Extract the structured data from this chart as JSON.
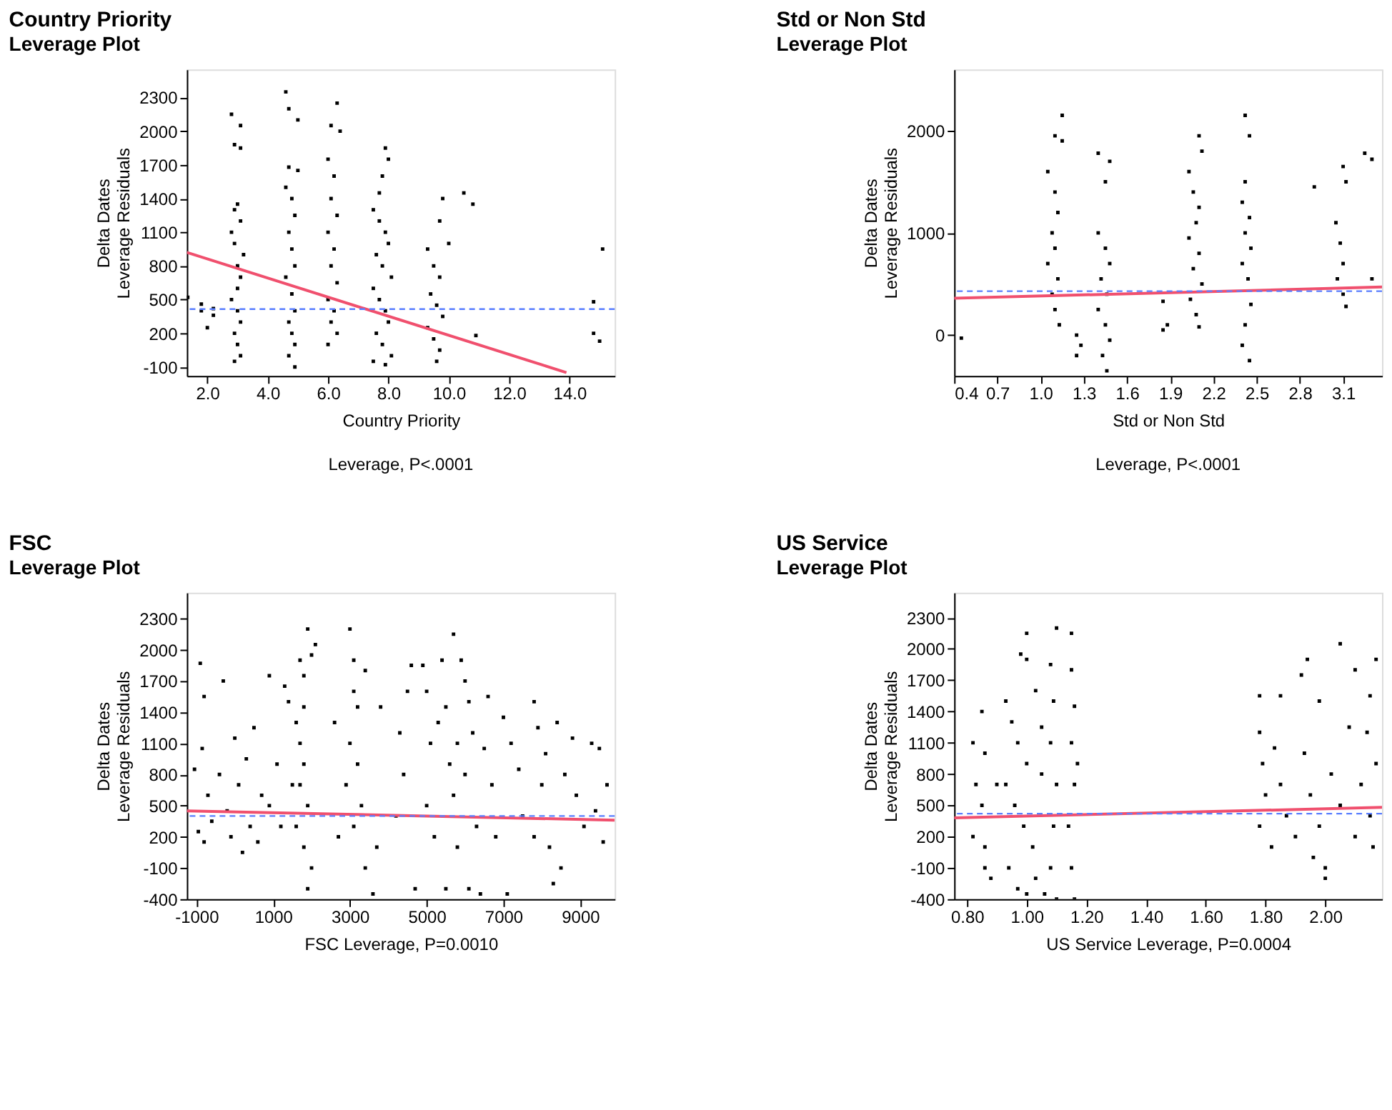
{
  "chart_data": [
    {
      "type": "scatter",
      "title": "Country Priority",
      "subtitle": "Leverage Plot",
      "xlabel": "Country Priority",
      "ylabel": "Delta Dates\nLeverage Residuals",
      "annotations": [
        "Leverage, P<.0001"
      ],
      "marker": "square",
      "grid": false,
      "xlim": [
        1.32,
        15.5
      ],
      "ylim": [
        -180,
        2550
      ],
      "xticks": [
        {
          "value": 2,
          "label": "2.0"
        },
        {
          "value": 4,
          "label": "4.0"
        },
        {
          "value": 6,
          "label": "6.0"
        },
        {
          "value": 8,
          "label": "8.0"
        },
        {
          "value": 10,
          "label": "10.0"
        },
        {
          "value": 12,
          "label": "12.0"
        },
        {
          "value": 14,
          "label": "14.0"
        }
      ],
      "yticks": [
        -100,
        200,
        500,
        800,
        1100,
        1400,
        1700,
        2000,
        2300
      ],
      "ref_lines": [
        {
          "axis": "y",
          "value": 415,
          "color": "#5b7fff",
          "line_style": "dashed"
        }
      ],
      "series": [
        {
          "type": "scatter",
          "color": "#000000",
          "x": [
            1.35,
            1.8,
            1.8,
            2.2,
            2.2,
            2.0,
            2.8,
            3.0,
            3.1,
            2.9,
            3.0,
            3.1,
            2.8,
            3.0,
            3.1,
            2.9,
            3.0,
            3.1,
            2.9,
            3.0,
            3.2,
            2.9,
            2.9,
            3.1,
            2.8,
            3.1,
            4.6,
            4.8,
            4.9,
            4.7,
            4.8,
            4.9,
            4.6,
            4.8,
            4.9,
            4.7,
            4.8,
            4.9,
            4.7,
            4.9,
            5.0,
            4.7,
            4.7,
            4.6,
            5.0,
            6.0,
            6.2,
            6.1,
            6.3,
            6.0,
            6.2,
            6.1,
            6.3,
            6.0,
            6.2,
            6.1,
            6.3,
            6.0,
            6.3,
            6.1,
            6.4,
            7.5,
            7.7,
            7.9,
            8.0,
            7.6,
            7.8,
            8.1,
            7.5,
            7.7,
            7.9,
            8.0,
            7.6,
            7.8,
            8.1,
            7.5,
            7.9,
            7.9,
            8.0,
            7.8,
            7.7,
            9.3,
            9.5,
            9.7,
            9.4,
            9.6,
            9.8,
            9.3,
            9.5,
            9.7,
            9.6,
            9.8,
            9.7,
            10.0,
            10.5,
            10.8,
            10.9,
            14.8,
            15.1,
            14.8,
            15.0
          ],
          "values": [
            520,
            460,
            400,
            420,
            360,
            250,
            1100,
            1350,
            1200,
            1000,
            800,
            700,
            500,
            400,
            300,
            200,
            100,
            0,
            -50,
            600,
            900,
            1300,
            1880,
            1850,
            2150,
            2050,
            1500,
            1400,
            1250,
            1100,
            950,
            800,
            700,
            550,
            400,
            300,
            200,
            100,
            0,
            -100,
            1650,
            1680,
            2200,
            2350,
            2100,
            1750,
            1600,
            1400,
            1250,
            1100,
            950,
            800,
            650,
            500,
            400,
            300,
            200,
            100,
            2250,
            2050,
            2000,
            1300,
            1200,
            1100,
            1000,
            900,
            800,
            700,
            600,
            500,
            400,
            300,
            200,
            100,
            0,
            -50,
            -80,
            1850,
            1750,
            1600,
            1450,
            950,
            800,
            700,
            550,
            450,
            350,
            250,
            150,
            50,
            -50,
            1400,
            1200,
            1000,
            1450,
            1350,
            180,
            480,
            950,
            200,
            130
          ]
        },
        {
          "type": "line",
          "color": "#f0506e",
          "marker": "none",
          "x": [
            1.32,
            13.9
          ],
          "values": [
            920,
            -150
          ]
        }
      ]
    },
    {
      "type": "scatter",
      "title": "Std or  Non Std",
      "subtitle": "Leverage Plot",
      "xlabel": "Std or  Non Std",
      "ylabel": "Delta Dates\nLeverage Residuals",
      "annotations": [
        "Leverage, P<.0001"
      ],
      "marker": "square",
      "grid": false,
      "xlim": [
        0.4,
        3.37
      ],
      "ylim": [
        -400,
        2600
      ],
      "xticks": [
        0.4,
        0.7,
        {
          "value": 1,
          "label": "1.0"
        },
        1.3,
        1.6,
        1.9,
        2.2,
        2.5,
        2.8,
        3.1
      ],
      "yticks": [
        0,
        1000,
        2000
      ],
      "ref_lines": [
        {
          "axis": "y",
          "value": 430,
          "color": "#5b7fff",
          "line_style": "dashed"
        }
      ],
      "series": [
        {
          "type": "scatter",
          "color": "#000000",
          "x": [
            0.45,
            1.05,
            1.1,
            1.12,
            1.08,
            1.1,
            1.05,
            1.12,
            1.08,
            1.1,
            1.13,
            1.1,
            1.15,
            1.15,
            1.25,
            1.28,
            1.25,
            1.4,
            1.45,
            1.48,
            1.42,
            1.46,
            1.4,
            1.45,
            1.48,
            1.43,
            1.46,
            1.4,
            1.48,
            1.45,
            1.85,
            1.88,
            1.85,
            2.03,
            2.06,
            2.1,
            2.08,
            2.03,
            2.1,
            2.06,
            2.12,
            2.04,
            2.08,
            2.1,
            2.1,
            2.12,
            2.4,
            2.45,
            2.42,
            2.46,
            2.4,
            2.44,
            2.46,
            2.42,
            2.4,
            2.45,
            2.42,
            2.42,
            2.45,
            2.9,
            3.05,
            3.08,
            3.1,
            3.06,
            3.1,
            3.12,
            3.1,
            3.12,
            3.25,
            3.3,
            3.3
          ],
          "values": [
            -30,
            1600,
            1400,
            1200,
            1000,
            850,
            700,
            550,
            400,
            250,
            100,
            1950,
            1900,
            2150,
            0,
            -100,
            -200,
            1000,
            850,
            700,
            550,
            400,
            250,
            100,
            -50,
            -200,
            -350,
            1780,
            1700,
            1500,
            330,
            100,
            50,
            1600,
            1400,
            1250,
            1100,
            950,
            800,
            650,
            500,
            350,
            200,
            80,
            1950,
            1800,
            1300,
            1150,
            1000,
            850,
            700,
            550,
            300,
            100,
            -100,
            -250,
            1500,
            2150,
            1950,
            1450,
            1100,
            900,
            700,
            550,
            400,
            280,
            1650,
            1500,
            1780,
            1720,
            550
          ]
        },
        {
          "type": "line",
          "color": "#f0506e",
          "marker": "none",
          "x": [
            0.4,
            3.37
          ],
          "values": [
            360,
            470
          ]
        }
      ]
    },
    {
      "type": "scatter",
      "title": "FSC",
      "subtitle": "Leverage Plot",
      "xlabel": "FSC Leverage, P=0.0010",
      "ylabel": "Delta Dates\nLeverage Residuals",
      "marker": "square",
      "grid": false,
      "xlim": [
        -1250,
        9900
      ],
      "ylim": [
        -400,
        2550
      ],
      "xticks": [
        -1000,
        1000,
        3000,
        5000,
        7000,
        9000
      ],
      "yticks": [
        -400,
        -100,
        200,
        500,
        800,
        1100,
        1400,
        1700,
        2000,
        2300
      ],
      "ref_lines": [
        {
          "axis": "y",
          "value": 400,
          "color": "#5b7fff",
          "line_style": "dashed"
        }
      ],
      "series": [
        {
          "type": "scatter",
          "color": "#000000",
          "x": [
            -1050,
            -900,
            -800,
            -850,
            -950,
            -800,
            -700,
            -600,
            -400,
            -300,
            -200,
            0,
            -100,
            100,
            200,
            300,
            400,
            500,
            600,
            700,
            900,
            900,
            1100,
            1200,
            1300,
            1400,
            1500,
            1600,
            1700,
            1800,
            1700,
            1900,
            1600,
            1800,
            2000,
            1900,
            1700,
            1800,
            2000,
            1900,
            2100,
            1800,
            2600,
            2700,
            3000,
            3100,
            3100,
            3000,
            3200,
            2900,
            3300,
            3100,
            3400,
            3600,
            3200,
            3400,
            3800,
            3700,
            4300,
            4200,
            4600,
            4500,
            4400,
            4700,
            4900,
            5000,
            5100,
            5000,
            5200,
            5300,
            5400,
            5500,
            5600,
            5500,
            5700,
            5800,
            5700,
            5800,
            5900,
            6000,
            6100,
            6200,
            6000,
            6300,
            6100,
            6400,
            6500,
            6600,
            6700,
            6800,
            7000,
            7100,
            7200,
            7400,
            7500,
            7800,
            7900,
            8000,
            7800,
            8100,
            8200,
            8300,
            8400,
            8500,
            8600,
            8800,
            8900,
            9100,
            9300,
            9400,
            9500,
            9600,
            9700
          ],
          "values": [
            850,
            1870,
            1550,
            1050,
            250,
            150,
            600,
            350,
            800,
            1700,
            450,
            1150,
            200,
            700,
            50,
            950,
            300,
            1250,
            150,
            600,
            1750,
            500,
            900,
            300,
            1650,
            1500,
            700,
            1300,
            1100,
            900,
            700,
            500,
            300,
            100,
            -100,
            -300,
            1900,
            1750,
            1950,
            2200,
            2050,
            1450,
            1300,
            200,
            2200,
            1900,
            1600,
            1100,
            900,
            700,
            500,
            300,
            -100,
            -350,
            1450,
            1800,
            1450,
            100,
            1200,
            400,
            1850,
            1600,
            800,
            -300,
            1850,
            1600,
            1100,
            500,
            200,
            1300,
            1900,
            1450,
            900,
            -300,
            2150,
            1100,
            600,
            100,
            1900,
            1700,
            1500,
            1200,
            800,
            300,
            -300,
            -350,
            1050,
            1550,
            700,
            200,
            1350,
            -350,
            1100,
            850,
            400,
            1500,
            1250,
            700,
            200,
            1000,
            100,
            -250,
            1300,
            -100,
            800,
            1150,
            600,
            300,
            1100,
            450,
            1050,
            150,
            700
          ]
        },
        {
          "type": "line",
          "color": "#f0506e",
          "marker": "none",
          "x": [
            -1250,
            9900
          ],
          "values": [
            450,
            360
          ]
        }
      ]
    },
    {
      "type": "scatter",
      "title": "US Service",
      "subtitle": "Leverage Plot",
      "xlabel": "US Service Leverage, P=0.0004",
      "ylabel": "Delta Dates\nLeverage Residuals",
      "marker": "square",
      "grid": false,
      "xlim": [
        0.757,
        2.19
      ],
      "ylim": [
        -400,
        2540
      ],
      "xticks": [
        {
          "value": 0.8,
          "label": "0.80"
        },
        {
          "value": 1,
          "label": "1.00"
        },
        {
          "value": 1.2,
          "label": "1.20"
        },
        {
          "value": 1.4,
          "label": "1.40"
        },
        {
          "value": 1.6,
          "label": "1.60"
        },
        {
          "value": 1.8,
          "label": "1.80"
        },
        {
          "value": 2,
          "label": "2.00"
        }
      ],
      "yticks": [
        -400,
        -100,
        200,
        500,
        800,
        1100,
        1400,
        1700,
        2000,
        2300
      ],
      "ref_lines": [
        {
          "axis": "y",
          "value": 420,
          "color": "#5b7fff",
          "line_style": "dashed"
        }
      ],
      "series": [
        {
          "type": "scatter",
          "color": "#000000",
          "x": [
            0.82,
            0.83,
            0.82,
            0.85,
            0.86,
            0.85,
            0.86,
            0.86,
            0.88,
            0.9,
            0.93,
            0.95,
            0.97,
            1.0,
            0.93,
            0.96,
            0.99,
            1.02,
            0.94,
            0.97,
            1.0,
            0.98,
            1.0,
            1.0,
            1.03,
            1.05,
            1.05,
            1.06,
            1.03,
            1.08,
            1.09,
            1.08,
            1.1,
            1.09,
            1.08,
            1.1,
            1.1,
            1.15,
            1.15,
            1.16,
            1.15,
            1.16,
            1.14,
            1.15,
            1.16,
            1.17,
            1.78,
            1.78,
            1.79,
            1.8,
            1.78,
            1.82,
            1.83,
            1.85,
            1.85,
            1.87,
            1.9,
            1.92,
            1.94,
            1.93,
            1.95,
            1.96,
            1.98,
            1.98,
            2.0,
            2.0,
            2.02,
            2.05,
            2.05,
            2.08,
            2.1,
            2.1,
            2.12,
            2.14,
            2.15,
            2.15,
            2.17,
            2.17,
            2.16
          ],
          "values": [
            1100,
            700,
            200,
            1400,
            1000,
            500,
            100,
            -100,
            -200,
            700,
            1500,
            1300,
            1100,
            900,
            700,
            500,
            300,
            100,
            -100,
            -300,
            -350,
            1950,
            1900,
            2150,
            1600,
            1250,
            800,
            -350,
            -200,
            1850,
            1500,
            1100,
            700,
            300,
            -100,
            -400,
            2200,
            2150,
            1800,
            1450,
            1100,
            700,
            300,
            -100,
            -400,
            900,
            1550,
            1200,
            900,
            600,
            300,
            100,
            1050,
            1550,
            700,
            400,
            200,
            1750,
            1900,
            1000,
            600,
            0,
            1500,
            300,
            -100,
            -200,
            800,
            2050,
            500,
            1250,
            1800,
            200,
            700,
            1200,
            1550,
            400,
            1900,
            900,
            100
          ]
        },
        {
          "type": "line",
          "color": "#f0506e",
          "marker": "none",
          "x": [
            0.757,
            2.19
          ],
          "values": [
            380,
            480
          ]
        }
      ]
    }
  ]
}
